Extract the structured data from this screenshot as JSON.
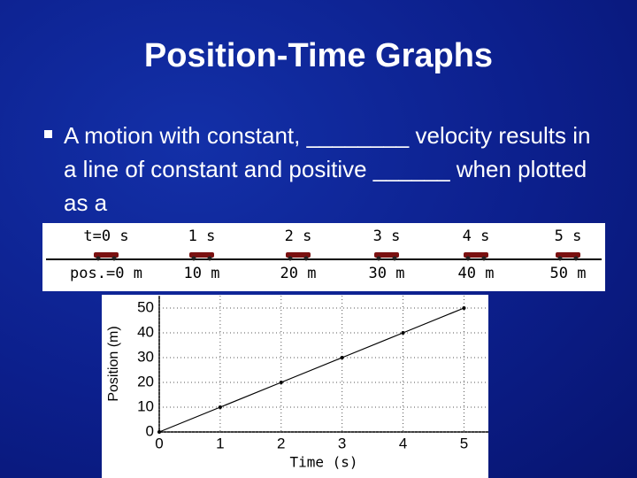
{
  "slide": {
    "title": "Position-Time Graphs",
    "bullet": "A motion with constant, ________ velocity results in a line of constant and positive ______ when plotted as a"
  },
  "strip": {
    "times": [
      "t=0 s",
      "1 s",
      "2 s",
      "3 s",
      "4 s",
      "5 s"
    ],
    "positions": [
      "pos.=0 m",
      "10 m",
      "20 m",
      "30 m",
      "40 m",
      "50 m"
    ]
  },
  "chart_data": {
    "type": "line",
    "x": [
      0,
      1,
      2,
      3,
      4,
      5
    ],
    "series": [
      {
        "values": [
          0,
          10,
          20,
          30,
          40,
          50
        ],
        "color": "#000000"
      }
    ],
    "xlabel": "Time (s)",
    "ylabel": "Position (m)",
    "xlim": [
      0,
      5.4
    ],
    "ylim": [
      0,
      55
    ],
    "xticks": [
      0,
      1,
      2,
      3,
      4,
      5
    ],
    "yticks": [
      0,
      10,
      20,
      30,
      40,
      50
    ],
    "grid": true
  }
}
